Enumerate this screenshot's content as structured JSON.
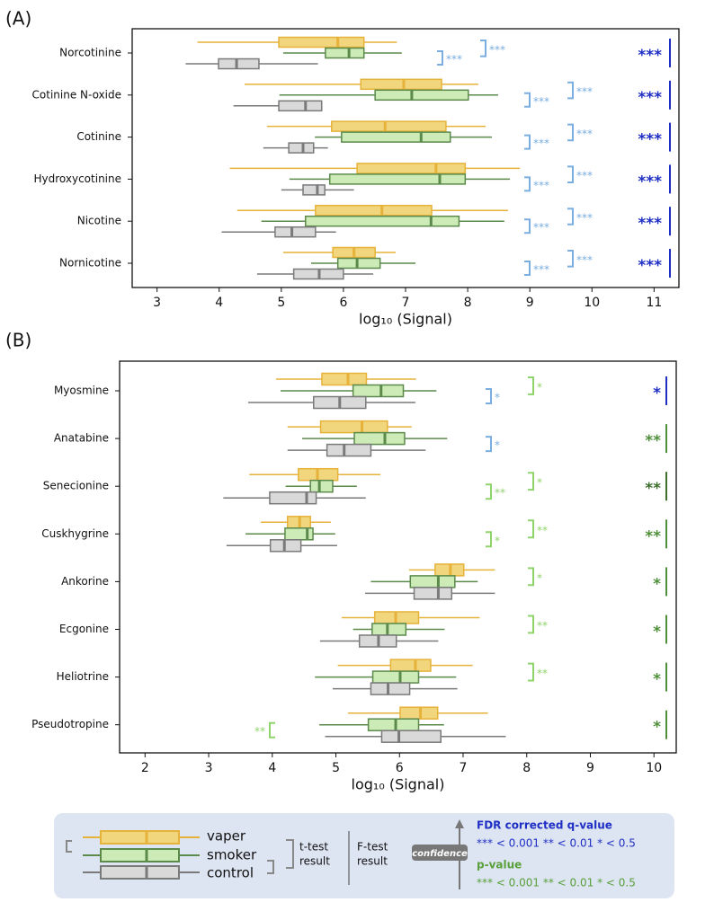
{
  "chart_data": [
    {
      "type": "box",
      "panel_label": "(A)",
      "xlabel": "log₁₀ (Signal)",
      "categories": [
        "Norcotinine",
        "Cotinine N-oxide",
        "Cotinine",
        "Hydroxycotinine",
        "Nicotine",
        "Nornicotine"
      ],
      "xlim": [
        2.6,
        11.4
      ],
      "xticks": [
        3,
        4,
        5,
        6,
        7,
        8,
        9,
        10,
        11
      ],
      "series": [
        {
          "name": "vaper",
          "color": "#f2d67e",
          "edge": "#e6b23a",
          "whislo": [
            3.65,
            4.41,
            4.77,
            4.17,
            4.29,
            5.03
          ],
          "q1": [
            4.96,
            6.28,
            5.81,
            6.22,
            5.55,
            5.83
          ],
          "med": [
            5.91,
            6.97,
            6.67,
            7.49,
            6.62,
            6.17
          ],
          "q3": [
            6.33,
            7.58,
            7.65,
            7.96,
            7.42,
            6.51
          ],
          "whishi": [
            6.86,
            8.17,
            8.29,
            8.84,
            8.65,
            6.84
          ]
        },
        {
          "name": "smoker",
          "color": "#cdebb6",
          "edge": "#5b8a4b",
          "whislo": [
            5.03,
            4.97,
            5.54,
            5.13,
            4.68,
            5.48
          ],
          "q1": [
            5.71,
            6.51,
            5.97,
            5.78,
            5.39,
            5.91
          ],
          "med": [
            6.09,
            7.1,
            7.25,
            7.55,
            7.41,
            6.22
          ],
          "q3": [
            6.33,
            8.01,
            7.72,
            7.96,
            7.86,
            6.59
          ],
          "whishi": [
            6.94,
            8.49,
            8.39,
            8.68,
            8.59,
            7.16
          ]
        },
        {
          "name": "control",
          "color": "#d9d9d9",
          "edge": "#7a7a7a",
          "whislo": [
            3.46,
            4.23,
            4.71,
            5.0,
            4.04,
            4.61
          ],
          "q1": [
            3.99,
            4.96,
            5.12,
            5.35,
            4.9,
            5.2
          ],
          "med": [
            4.28,
            5.39,
            5.35,
            5.58,
            5.17,
            5.61
          ],
          "q3": [
            4.64,
            5.65,
            5.52,
            5.7,
            5.55,
            6.0
          ],
          "whishi": [
            5.59,
            5.65,
            5.75,
            6.17,
            5.88,
            6.48
          ]
        }
      ],
      "ttest_low": [
        {
          "label": "***",
          "color": "#7aaee0"
        },
        {
          "label": "***",
          "color": "#7aaee0"
        },
        {
          "label": "***",
          "color": "#7aaee0"
        },
        {
          "label": "***",
          "color": "#7aaee0"
        },
        {
          "label": "***",
          "color": "#7aaee0"
        },
        {
          "label": "***",
          "color": "#7aaee0"
        }
      ],
      "ttest_high": [
        {
          "label": "***",
          "color": "#7aaee0"
        },
        {
          "label": "***",
          "color": "#7aaee0"
        },
        {
          "label": "***",
          "color": "#7aaee0"
        },
        {
          "label": "***",
          "color": "#7aaee0"
        },
        {
          "label": "***",
          "color": "#7aaee0"
        },
        {
          "label": "***",
          "color": "#7aaee0"
        }
      ],
      "ftest": [
        {
          "label": "***",
          "color": "#1f2fc4"
        },
        {
          "label": "***",
          "color": "#1f2fc4"
        },
        {
          "label": "***",
          "color": "#1f2fc4"
        },
        {
          "label": "***",
          "color": "#1f2fc4"
        },
        {
          "label": "***",
          "color": "#1f2fc4"
        },
        {
          "label": "***",
          "color": "#1f2fc4"
        }
      ]
    },
    {
      "type": "box",
      "panel_label": "(B)",
      "xlabel": "log₁₀ (Signal)",
      "categories": [
        "Myosmine",
        "Anatabine",
        "Senecionine",
        "Cuskhygrine",
        "Ankorine",
        "Ecgonine",
        "Heliotrine",
        "Pseudotropine"
      ],
      "xlim": [
        1.6,
        10.35
      ],
      "xticks": [
        2,
        3,
        4,
        5,
        6,
        7,
        8,
        9,
        10
      ],
      "series": [
        {
          "name": "vaper",
          "color": "#f2d67e",
          "edge": "#e6b23a",
          "whislo": [
            4.06,
            4.24,
            3.64,
            3.82,
            6.15,
            5.09,
            5.03,
            5.19
          ],
          "q1": [
            4.78,
            4.76,
            4.41,
            4.24,
            6.56,
            5.61,
            5.86,
            6.01
          ],
          "med": [
            5.19,
            5.41,
            4.71,
            4.43,
            6.8,
            5.94,
            6.25,
            6.33
          ],
          "q3": [
            5.48,
            5.81,
            5.03,
            4.6,
            7.01,
            6.3,
            6.49,
            6.6
          ],
          "whishi": [
            6.26,
            6.19,
            5.7,
            4.92,
            7.5,
            7.26,
            7.15,
            7.39
          ]
        },
        {
          "name": "smoker",
          "color": "#cdebb6",
          "edge": "#5b8a4b",
          "whislo": [
            4.13,
            4.47,
            4.21,
            3.58,
            5.55,
            5.27,
            4.67,
            4.74
          ],
          "q1": [
            5.27,
            5.29,
            4.6,
            4.2,
            6.17,
            5.57,
            5.58,
            5.51
          ],
          "med": [
            5.71,
            5.77,
            4.74,
            4.55,
            6.61,
            5.81,
            6.01,
            5.94
          ],
          "q3": [
            6.06,
            6.08,
            4.95,
            4.64,
            6.87,
            6.1,
            6.3,
            6.3
          ],
          "whishi": [
            6.58,
            6.75,
            5.33,
            4.99,
            7.23,
            6.71,
            6.89,
            6.7
          ]
        },
        {
          "name": "control",
          "color": "#d9d9d9",
          "edge": "#7a7a7a",
          "whislo": [
            3.62,
            4.24,
            3.23,
            3.28,
            5.46,
            4.75,
            4.95,
            4.83
          ],
          "q1": [
            4.65,
            4.86,
            3.96,
            3.97,
            6.23,
            5.37,
            5.55,
            5.72
          ],
          "med": [
            5.06,
            5.13,
            4.54,
            4.19,
            6.61,
            5.67,
            5.82,
            5.99
          ],
          "q3": [
            5.47,
            5.55,
            4.69,
            4.45,
            6.82,
            5.95,
            6.16,
            6.65
          ],
          "whishi": [
            6.25,
            6.41,
            5.47,
            5.02,
            7.5,
            6.61,
            6.91,
            7.67
          ]
        }
      ],
      "ttest_low": [
        {
          "label": "*",
          "color": "#7aaee0"
        },
        {
          "label": "*",
          "color": "#7aaee0"
        },
        {
          "label": "**",
          "color": "#8fd46a"
        },
        {
          "label": "*",
          "color": "#8fd46a"
        },
        null,
        null,
        null,
        {
          "label": "**",
          "color": "#8fd46a"
        }
      ],
      "ttest_high": [
        {
          "label": "*",
          "color": "#8fd46a"
        },
        null,
        {
          "label": "*",
          "color": "#8fd46a"
        },
        {
          "label": "**",
          "color": "#8fd46a"
        },
        {
          "label": "*",
          "color": "#8fd46a"
        },
        {
          "label": "**",
          "color": "#8fd46a"
        },
        {
          "label": "**",
          "color": "#8fd46a"
        },
        null
      ],
      "ftest": [
        {
          "label": "*",
          "color": "#1f2fc4"
        },
        {
          "label": "**",
          "color": "#4f8f3a"
        },
        {
          "label": "**",
          "color": "#3d6e2c"
        },
        {
          "label": "**",
          "color": "#4f8f3a"
        },
        {
          "label": "*",
          "color": "#4f8f3a"
        },
        {
          "label": "*",
          "color": "#4f8f3a"
        },
        {
          "label": "*",
          "color": "#4f8f3a"
        },
        {
          "label": "*",
          "color": "#4f8f3a"
        }
      ]
    }
  ],
  "legend": {
    "ttest_label": [
      "t-test",
      "result"
    ],
    "ftest_label": [
      "F-test",
      "result"
    ],
    "arrow_label": "confidence",
    "q_title": "FDR corrected q-value",
    "q_thresholds": "*** < 0.001 ** < 0.01 * < 0.5",
    "p_title": "p-value",
    "p_thresholds": "*** < 0.001 ** < 0.01 * < 0.5"
  }
}
